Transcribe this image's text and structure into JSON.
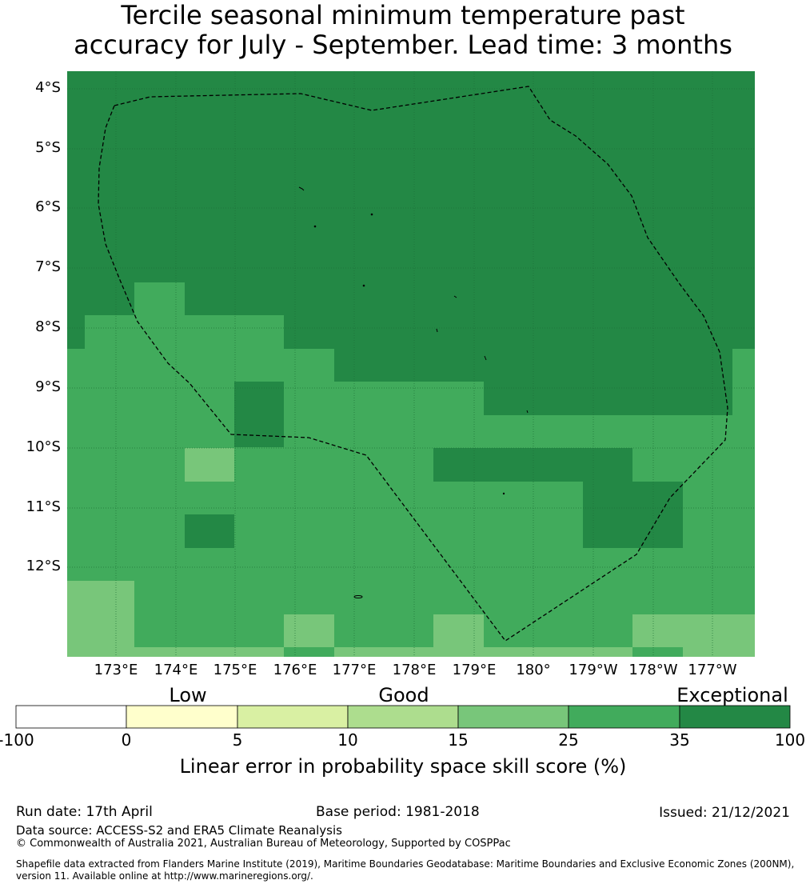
{
  "title": {
    "line1": "Tercile seasonal minimum temperature past",
    "line2": "accuracy for July - September. Lead time: 3 months"
  },
  "map": {
    "lat_labels": [
      "4°S",
      "5°S",
      "6°S",
      "7°S",
      "8°S",
      "9°S",
      "10°S",
      "11°S",
      "12°S"
    ],
    "lon_labels": [
      "173°E",
      "174°E",
      "175°E",
      "176°E",
      "177°E",
      "178°E",
      "179°E",
      "180°",
      "179°W",
      "178°W",
      "177°W"
    ],
    "boundary_style": "dashed black line (EEZ)",
    "land": "small black island outlines",
    "colors": {
      "dark": "#238845",
      "medium": "#41ab5c",
      "light": "#78c67a"
    }
  },
  "colorbar": {
    "categories": [
      "Low",
      "Good",
      "Exceptional"
    ],
    "ticks": [
      "-100",
      "0",
      "5",
      "10",
      "15",
      "25",
      "35",
      "100"
    ],
    "colors": [
      "#ffffff",
      "#ffffcc",
      "#d9f0a3",
      "#addd8e",
      "#78c67a",
      "#41ab5c",
      "#238845"
    ],
    "label": "Linear error in probability space skill score (%)"
  },
  "footer": {
    "run_date": "Run date: 17th April",
    "base_period": "Base period: 1981-2018",
    "issued": "Issued: 21/12/2021",
    "data_source": "Data source: ACCESS-S2 and ERA5 Climate Reanalysis",
    "copyright": "© Commonwealth of Australia 2021, Australian Bureau of Meteorology, Supported by COSPPac",
    "shapefile": "Shapefile data extracted from Flanders Marine Institute (2019), Maritime Boundaries Geodatabase: Maritime Boundaries and Exclusive Economic Zones (200NM), version 11. Available online at http://www.marineregions.org/."
  }
}
